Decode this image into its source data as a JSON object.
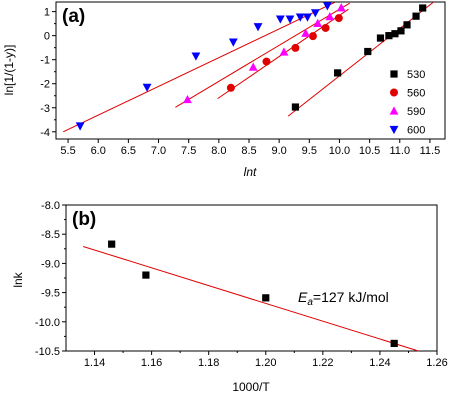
{
  "chart_data": [
    {
      "panel_label": "(a)",
      "type": "scatter",
      "xlabel": "lnt",
      "ylabel": "ln[1/(1-y)]",
      "xlim": [
        5.3,
        11.75
      ],
      "ylim": [
        -4.3,
        1.4
      ],
      "xticks": [
        "5.5",
        "6.0",
        "6.5",
        "7.0",
        "7.5",
        "8.0",
        "8.5",
        "9.0",
        "9.5",
        "10.0",
        "10.5",
        "11.0",
        "11.5"
      ],
      "yticks": [
        "-4",
        "-3",
        "-2",
        "-1",
        "0",
        "1"
      ],
      "legend_position": "right",
      "series": [
        {
          "name": "530",
          "color": "#000000",
          "marker": "square",
          "points": [
            [
              9.27,
              -2.97
            ],
            [
              9.97,
              -1.55
            ],
            [
              10.47,
              -0.66
            ],
            [
              10.68,
              -0.1
            ],
            [
              10.82,
              0.0
            ],
            [
              10.92,
              0.08
            ],
            [
              11.02,
              0.2
            ],
            [
              11.12,
              0.45
            ],
            [
              11.27,
              0.81
            ],
            [
              11.38,
              1.15
            ]
          ],
          "fit": [
            [
              9.15,
              -3.35
            ],
            [
              11.55,
              1.38
            ]
          ]
        },
        {
          "name": "560",
          "color": "#e00000",
          "marker": "circle",
          "points": [
            [
              8.2,
              -2.17
            ],
            [
              8.79,
              -1.08
            ],
            [
              9.27,
              -0.51
            ],
            [
              9.56,
              -0.02
            ],
            [
              9.77,
              0.32
            ],
            [
              9.99,
              0.73
            ]
          ],
          "fit": [
            [
              7.98,
              -2.62
            ],
            [
              10.15,
              1.1
            ]
          ]
        },
        {
          "name": "590",
          "color": "#ff00ff",
          "marker": "triangle-up",
          "points": [
            [
              7.48,
              -2.66
            ],
            [
              8.57,
              -1.31
            ],
            [
              9.08,
              -0.68
            ],
            [
              9.44,
              0.1
            ],
            [
              9.64,
              0.51
            ],
            [
              9.84,
              0.79
            ],
            [
              10.03,
              1.16
            ]
          ],
          "fit": [
            [
              7.28,
              -2.98
            ],
            [
              10.17,
              1.35
            ]
          ]
        },
        {
          "name": "600",
          "color": "#0000ff",
          "marker": "triangle-down",
          "points": [
            [
              5.7,
              -3.76
            ],
            [
              6.81,
              -2.15
            ],
            [
              7.62,
              -0.85
            ],
            [
              8.24,
              -0.27
            ],
            [
              8.65,
              0.37
            ],
            [
              9.02,
              0.69
            ],
            [
              9.18,
              0.69
            ],
            [
              9.35,
              0.77
            ],
            [
              9.47,
              0.77
            ],
            [
              9.6,
              0.95
            ],
            [
              9.8,
              1.24
            ]
          ],
          "fit": [
            [
              5.42,
              -4.0
            ],
            [
              9.92,
              1.38
            ]
          ]
        }
      ]
    },
    {
      "panel_label": "(b)",
      "type": "scatter",
      "xlabel": "1000/T",
      "ylabel": "lnk",
      "xlim": [
        1.13,
        1.26
      ],
      "ylim": [
        -10.5,
        -8.0
      ],
      "xticks": [
        "1.14",
        "1.16",
        "1.18",
        "1.20",
        "1.22",
        "1.24",
        "1.26"
      ],
      "yticks": [
        "-10.5",
        "-10.0",
        "-9.5",
        "-9.0",
        "-8.5",
        "-8.0"
      ],
      "annotation": {
        "prefix": "E",
        "subscript": "a",
        "text": "=127 kJ/mol"
      },
      "series": [
        {
          "color": "#000000",
          "marker": "square",
          "points": [
            [
              1.146,
              -8.67
            ],
            [
              1.158,
              -9.2
            ],
            [
              1.2,
              -9.59
            ],
            [
              1.245,
              -10.37
            ]
          ],
          "fit": [
            [
              1.136,
              -8.71
            ],
            [
              1.2535,
              -10.5
            ]
          ]
        }
      ]
    }
  ]
}
